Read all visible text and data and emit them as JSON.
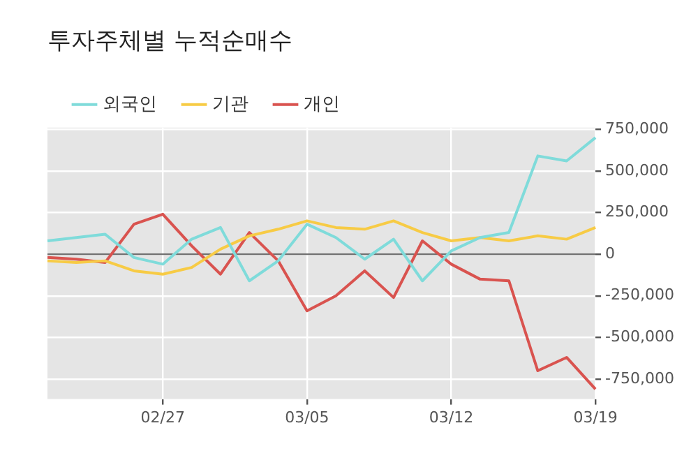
{
  "chart_data": {
    "type": "line",
    "title": "투자주체별 누적순매수",
    "categories": [
      null,
      null,
      null,
      null,
      "02/27",
      null,
      null,
      null,
      null,
      "03/05",
      null,
      null,
      null,
      null,
      "03/12",
      null,
      null,
      null,
      null,
      "03/19"
    ],
    "series": [
      {
        "name": "외국인",
        "color": "#7fdbda",
        "values": [
          80000,
          100000,
          120000,
          -20000,
          -60000,
          90000,
          160000,
          -160000,
          -40000,
          180000,
          100000,
          -30000,
          90000,
          -160000,
          20000,
          100000,
          130000,
          590000,
          560000,
          700000
        ]
      },
      {
        "name": "기관",
        "color": "#f7cb45",
        "values": [
          -40000,
          -50000,
          -40000,
          -100000,
          -120000,
          -80000,
          30000,
          110000,
          150000,
          200000,
          160000,
          150000,
          200000,
          130000,
          80000,
          100000,
          80000,
          110000,
          90000,
          160000
        ]
      },
      {
        "name": "개인",
        "color": "#d9534f",
        "values": [
          -20000,
          -30000,
          -50000,
          180000,
          240000,
          50000,
          -120000,
          130000,
          -40000,
          -340000,
          -250000,
          -100000,
          -260000,
          80000,
          -60000,
          -150000,
          -160000,
          -700000,
          -620000,
          -810000
        ]
      }
    ],
    "ylim": [
      -870000,
      760000
    ],
    "yticks": [
      {
        "value": -750000,
        "label": "-750,000"
      },
      {
        "value": -500000,
        "label": "-500,000"
      },
      {
        "value": -250000,
        "label": "-250,000"
      },
      {
        "value": 0,
        "label": "0"
      },
      {
        "value": 250000,
        "label": "250,000"
      },
      {
        "value": 500000,
        "label": "500,000"
      },
      {
        "value": 750000,
        "label": "750,000"
      }
    ],
    "ref_lines": [
      {
        "axis": "y",
        "value": 0,
        "color": "#707070"
      }
    ],
    "grid": true,
    "legend": "top left",
    "line_style": "solid",
    "marker": "none"
  }
}
